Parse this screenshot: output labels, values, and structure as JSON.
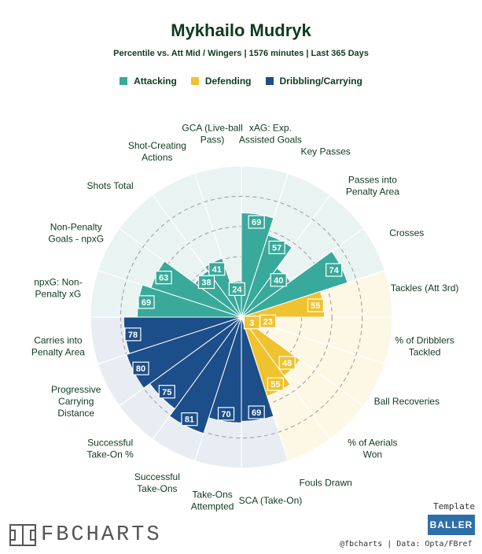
{
  "title": "Mykhailo Mudryk",
  "subtitle": "Percentile vs. Att Mid / Wingers | 1576 minutes | Last 365 Days",
  "legend": [
    {
      "label": "Attacking",
      "color": "#39a99b"
    },
    {
      "label": "Defending",
      "color": "#f0c230"
    },
    {
      "label": "Dribbling/Carrying",
      "color": "#1c4e8a"
    }
  ],
  "chart_data": {
    "type": "polar-bar",
    "scale": [
      0,
      100
    ],
    "categories": [
      {
        "label": "xAG: Exp.\nAssisted Goals",
        "value": 69,
        "group": "Attacking"
      },
      {
        "label": "Key Passes",
        "value": 57,
        "group": "Attacking"
      },
      {
        "label": "Passes into\nPenalty Area",
        "value": 40,
        "group": "Attacking"
      },
      {
        "label": "Crosses",
        "value": 74,
        "group": "Attacking"
      },
      {
        "label": "Tackles (Att 3rd)",
        "value": 55,
        "group": "Defending"
      },
      {
        "label": "% of Dribblers\nTackled",
        "value": 23,
        "group": "Defending"
      },
      {
        "label": "Ball Recoveries",
        "value": 3,
        "group": "Defending"
      },
      {
        "label": "% of Aerials\nWon",
        "value": 48,
        "group": "Defending"
      },
      {
        "label": "Fouls Drawn",
        "value": 55,
        "group": "Defending"
      },
      {
        "label": "SCA (Take-On)",
        "value": 69,
        "group": "Dribbling/Carrying"
      },
      {
        "label": "Take-Ons\nAttempted",
        "value": 70,
        "group": "Dribbling/Carrying"
      },
      {
        "label": "Successful\nTake-Ons",
        "value": 81,
        "group": "Dribbling/Carrying"
      },
      {
        "label": "Successful\nTake-On %",
        "value": 75,
        "group": "Dribbling/Carrying"
      },
      {
        "label": "Progressive\nCarrying\nDistance",
        "value": 80,
        "group": "Dribbling/Carrying"
      },
      {
        "label": "Carries into\nPenalty Area",
        "value": 78,
        "group": "Dribbling/Carrying"
      },
      {
        "label": "npxG: Non-\nPenalty xG",
        "value": 69,
        "group": "Attacking"
      },
      {
        "label": "Non-Penalty\nGoals - npxG",
        "value": 63,
        "group": "Attacking"
      },
      {
        "label": "Shots Total",
        "value": 38,
        "group": "Attacking"
      },
      {
        "label": "Shot-Creating\nActions",
        "value": 41,
        "group": "Attacking"
      },
      {
        "label": "GCA (Live-ball\nPass)",
        "value": 24,
        "group": "Attacking"
      }
    ]
  },
  "logo_text": "FBCHARTS",
  "template_label": "Template",
  "template_name": "BALLER",
  "credits": "@fbcharts | Data: Opta/FBref"
}
